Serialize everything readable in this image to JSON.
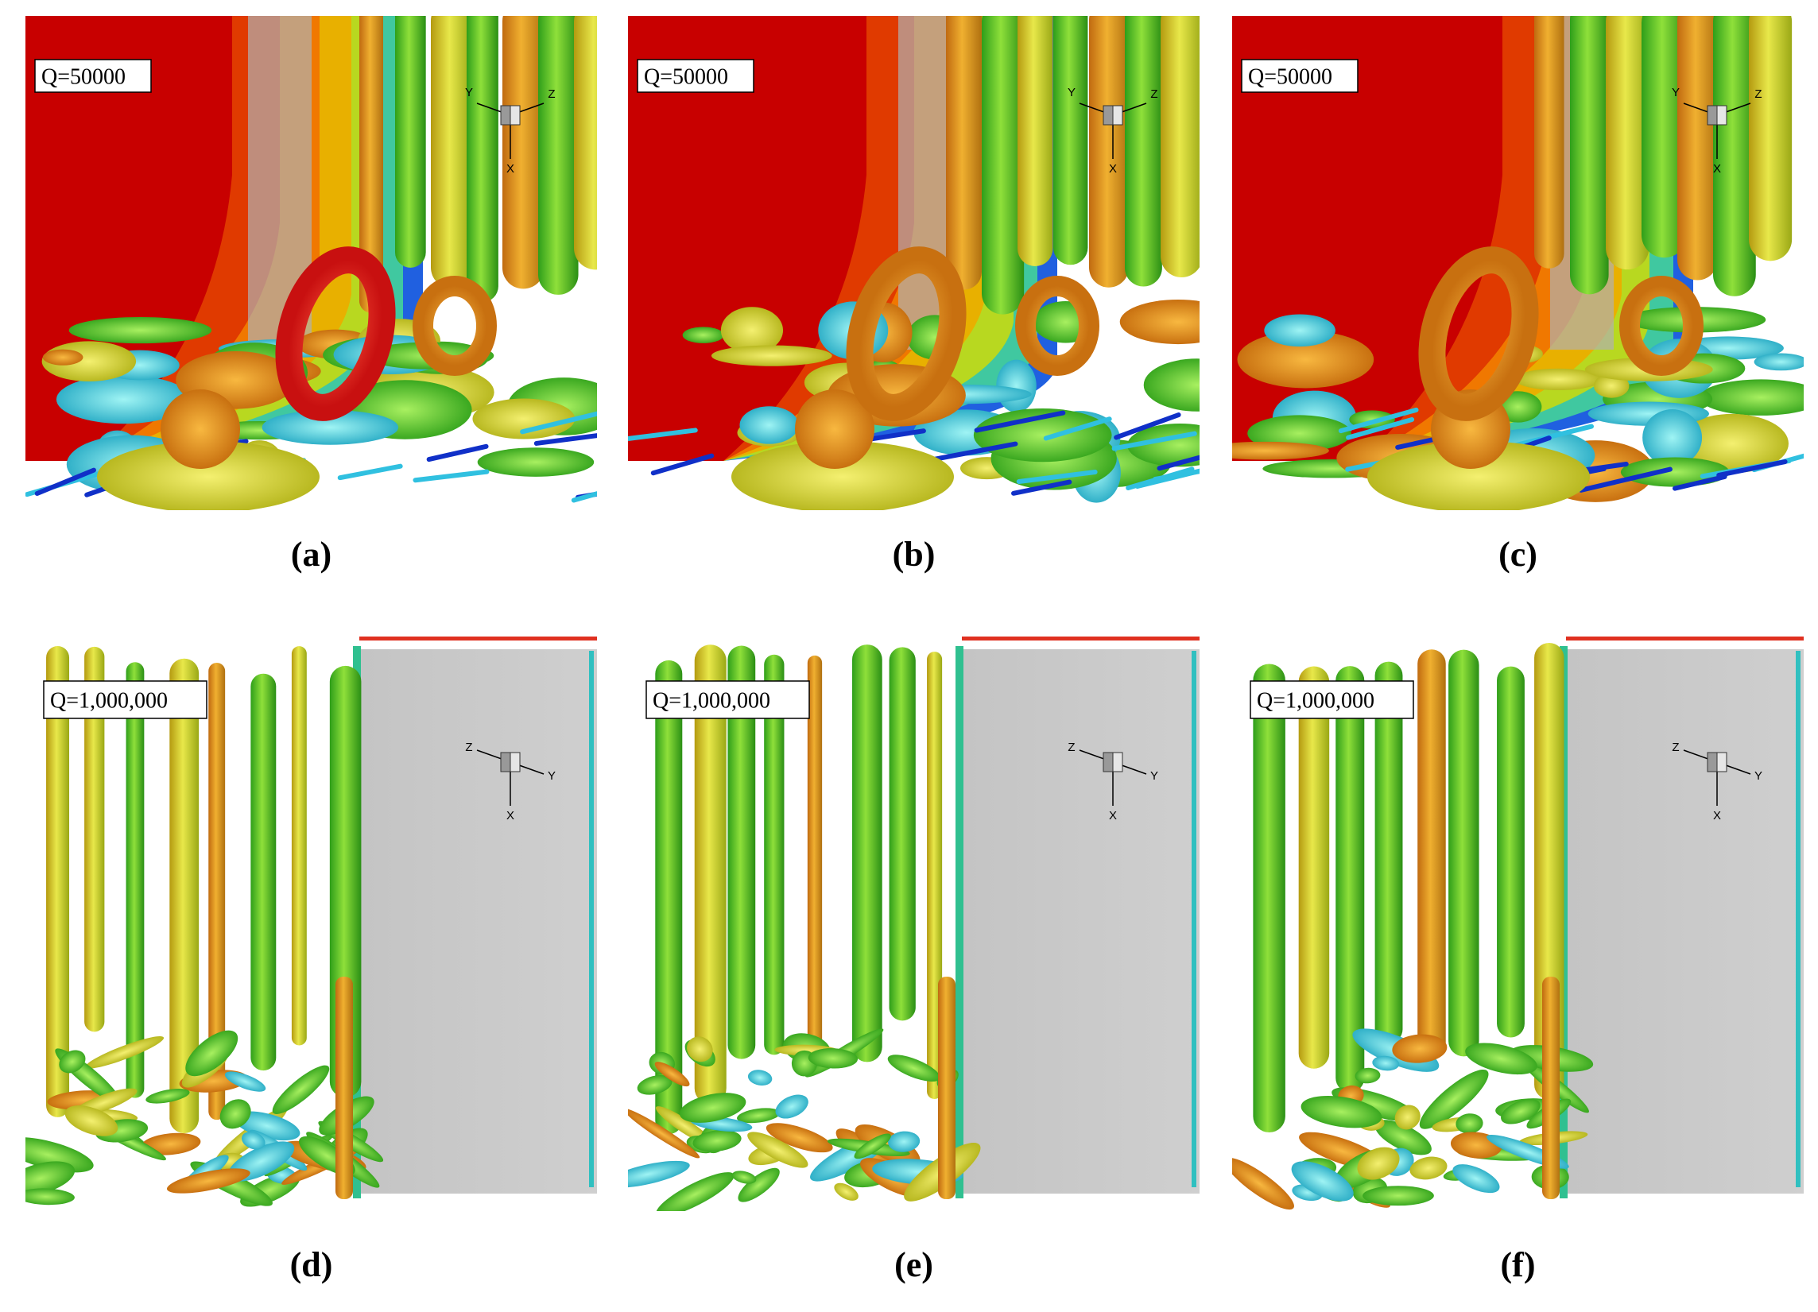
{
  "panels": [
    {
      "label": "Q=50000",
      "caption": "(a)",
      "axes": {
        "left": "Y",
        "right": "Z",
        "bottom": "X"
      }
    },
    {
      "label": "Q=50000",
      "caption": "(b)",
      "axes": {
        "left": "Y",
        "right": "Z",
        "bottom": "X"
      }
    },
    {
      "label": "Q=50000",
      "caption": "(c)",
      "axes": {
        "left": "Y",
        "right": "Z",
        "bottom": "X"
      }
    },
    {
      "label": "Q=1,000,000",
      "caption": "(d)",
      "axes": {
        "left": "Z",
        "right": "Y",
        "bottom": "X"
      }
    },
    {
      "label": "Q=1,000,000",
      "caption": "(e)",
      "axes": {
        "left": "Z",
        "right": "Y",
        "bottom": "X"
      }
    },
    {
      "label": "Q=1,000,000",
      "caption": "(f)",
      "axes": {
        "left": "Z",
        "right": "Y",
        "bottom": "X"
      }
    }
  ]
}
